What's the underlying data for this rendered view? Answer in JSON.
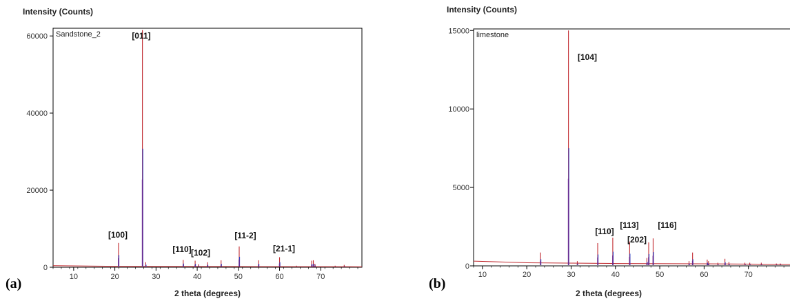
{
  "chart_data": [
    {
      "type": "line",
      "panel_label": "(a)",
      "series_label": "Sandstone_2",
      "ylabel": "Intensity (Counts)",
      "xlabel": "2 theta (degrees)",
      "xlim": [
        5,
        80
      ],
      "ylim": [
        0,
        62000
      ],
      "xticks": [
        10,
        20,
        30,
        40,
        50,
        60,
        70
      ],
      "yticks": [
        0,
        20000,
        40000,
        60000
      ],
      "grid": false,
      "baseline": [
        [
          5,
          400
        ],
        [
          20,
          250
        ],
        [
          40,
          200
        ],
        [
          60,
          150
        ],
        [
          80,
          120
        ]
      ],
      "peaks": [
        {
          "x": 20.9,
          "y": 6300,
          "label": "[100]"
        },
        {
          "x": 26.7,
          "y": 61500,
          "label": "[011]"
        },
        {
          "x": 27.5,
          "y": 1300
        },
        {
          "x": 36.6,
          "y": 1900,
          "label": "[110]"
        },
        {
          "x": 39.5,
          "y": 1700,
          "label": "[102]"
        },
        {
          "x": 40.3,
          "y": 800
        },
        {
          "x": 42.5,
          "y": 1300
        },
        {
          "x": 45.8,
          "y": 1800
        },
        {
          "x": 50.2,
          "y": 5400,
          "label": "[11-2]"
        },
        {
          "x": 54.9,
          "y": 1800
        },
        {
          "x": 60.0,
          "y": 2600,
          "label": "[21-1]"
        },
        {
          "x": 64.1,
          "y": 400
        },
        {
          "x": 67.8,
          "y": 1700
        },
        {
          "x": 68.2,
          "y": 1800
        },
        {
          "x": 68.6,
          "y": 900
        },
        {
          "x": 73.5,
          "y": 400
        },
        {
          "x": 75.7,
          "y": 600
        }
      ]
    },
    {
      "type": "line",
      "panel_label": "(b)",
      "series_label": "limestone",
      "ylabel": "Intensity (Counts)",
      "xlabel": "2 theta (degrees)",
      "xlim": [
        8,
        80
      ],
      "ylim": [
        0,
        15100
      ],
      "xticks": [
        10,
        20,
        30,
        40,
        50,
        60,
        70
      ],
      "yticks": [
        0,
        5000,
        10000,
        15000
      ],
      "grid": false,
      "baseline": [
        [
          8,
          300
        ],
        [
          20,
          200
        ],
        [
          40,
          150
        ],
        [
          60,
          130
        ],
        [
          80,
          100
        ]
      ],
      "peaks": [
        {
          "x": 23.1,
          "y": 850
        },
        {
          "x": 29.4,
          "y": 15000,
          "label": "[104]"
        },
        {
          "x": 31.4,
          "y": 300
        },
        {
          "x": 36.0,
          "y": 1450,
          "label": "[110]"
        },
        {
          "x": 39.4,
          "y": 1800,
          "label": "[113]"
        },
        {
          "x": 43.2,
          "y": 1550,
          "label": "[202]"
        },
        {
          "x": 47.1,
          "y": 500
        },
        {
          "x": 47.5,
          "y": 1500
        },
        {
          "x": 48.5,
          "y": 1750,
          "label": "[116]"
        },
        {
          "x": 56.6,
          "y": 300
        },
        {
          "x": 57.4,
          "y": 850
        },
        {
          "x": 60.7,
          "y": 400
        },
        {
          "x": 61.0,
          "y": 300
        },
        {
          "x": 63.1,
          "y": 200
        },
        {
          "x": 64.7,
          "y": 450
        },
        {
          "x": 65.6,
          "y": 250
        },
        {
          "x": 69.2,
          "y": 200
        },
        {
          "x": 70.3,
          "y": 200
        },
        {
          "x": 72.9,
          "y": 200
        },
        {
          "x": 76.3,
          "y": 150
        },
        {
          "x": 77.2,
          "y": 150
        }
      ]
    }
  ],
  "colors": {
    "profile_red": "#c0272d",
    "profile_blue": "#2b3fc4",
    "profile_purple": "#6a2a8e",
    "axis": "#000000"
  }
}
